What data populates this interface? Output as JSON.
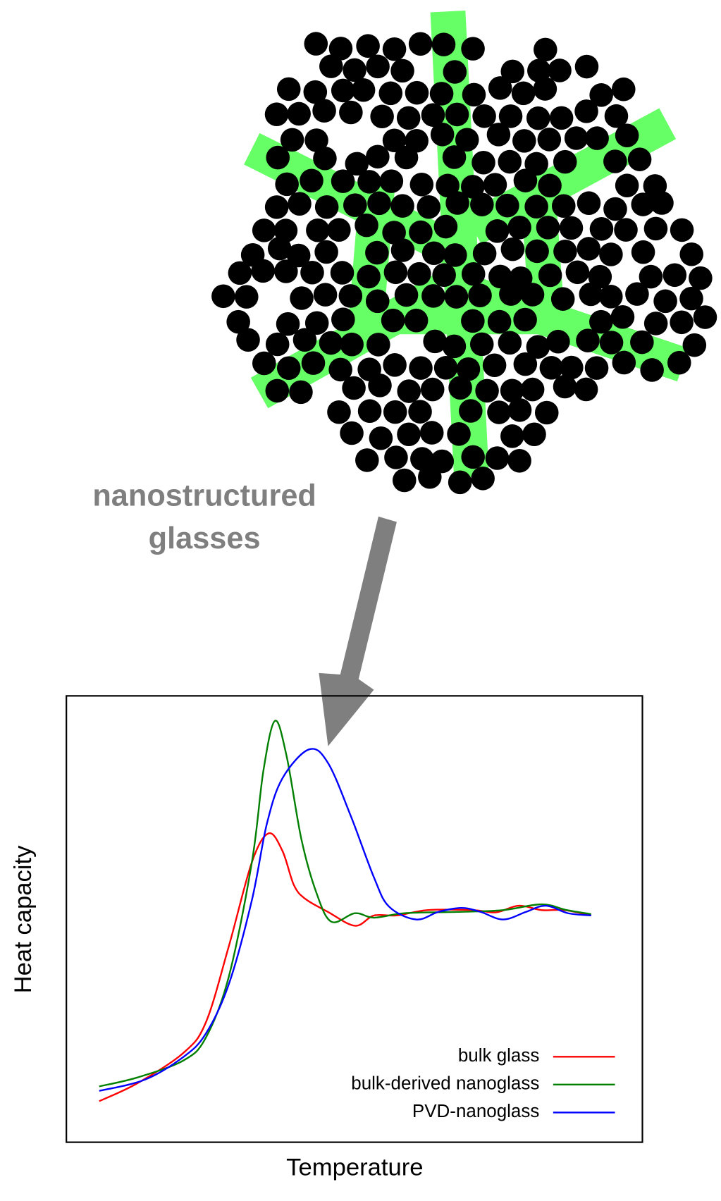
{
  "label_lines": [
    "nanostructured",
    "glasses"
  ],
  "chart_data": {
    "type": "line",
    "xlabel": "Temperature",
    "ylabel": "Heat capacity",
    "xlim": [
      0,
      100
    ],
    "ylim": [
      0,
      100
    ],
    "legend": "lower right",
    "series": [
      {
        "name": "bulk glass",
        "color": "#ff0000",
        "x": [
          5.7,
          12.3,
          20.3,
          24.2,
          28.2,
          32.2,
          35.1,
          37.5,
          39.5,
          41.5,
          45.4,
          50.1,
          53.4,
          57.4,
          62.7,
          70.6,
          74.6,
          78.5,
          82.5,
          86.5,
          91.1
        ],
        "values": [
          9.2,
          13.2,
          20,
          26.8,
          43.9,
          62.7,
          69.2,
          65.3,
          57.6,
          54.5,
          51.6,
          48.5,
          50.8,
          50.8,
          52,
          52,
          51.5,
          53,
          52,
          52,
          50.8
        ]
      },
      {
        "name": "bulk-derived nanoglass",
        "color": "#007f00",
        "x": [
          5.7,
          12.3,
          20.3,
          24.2,
          28.2,
          32.2,
          34.2,
          36.2,
          38.2,
          40.8,
          43.4,
          46,
          50.1,
          53.4,
          58.7,
          67.8,
          75.8,
          82.5,
          86.9,
          91.1
        ],
        "values": [
          12.5,
          14.5,
          18.3,
          23.4,
          37.1,
          62.7,
          83.2,
          94.4,
          86.7,
          67.9,
          55.9,
          49.4,
          51.3,
          50.3,
          51.3,
          51.6,
          52,
          53.3,
          52,
          51.1
        ]
      },
      {
        "name": "PVD-nanoglass",
        "color": "#0000ff",
        "x": [
          5.7,
          13.6,
          20.3,
          24.2,
          28.2,
          32.2,
          34.8,
          37.5,
          42.1,
          45.4,
          49.4,
          53.4,
          56,
          60.7,
          64.6,
          68.6,
          71.9,
          75.8,
          79.8,
          83.2,
          87.1,
          91.1
        ],
        "values": [
          11.5,
          14,
          19.1,
          24.3,
          35.4,
          54.2,
          71.3,
          81.5,
          88,
          85,
          73,
          59.3,
          52.8,
          49.9,
          51.6,
          52.5,
          51.6,
          49.9,
          51.6,
          53,
          51.3,
          50.8
        ]
      }
    ]
  }
}
